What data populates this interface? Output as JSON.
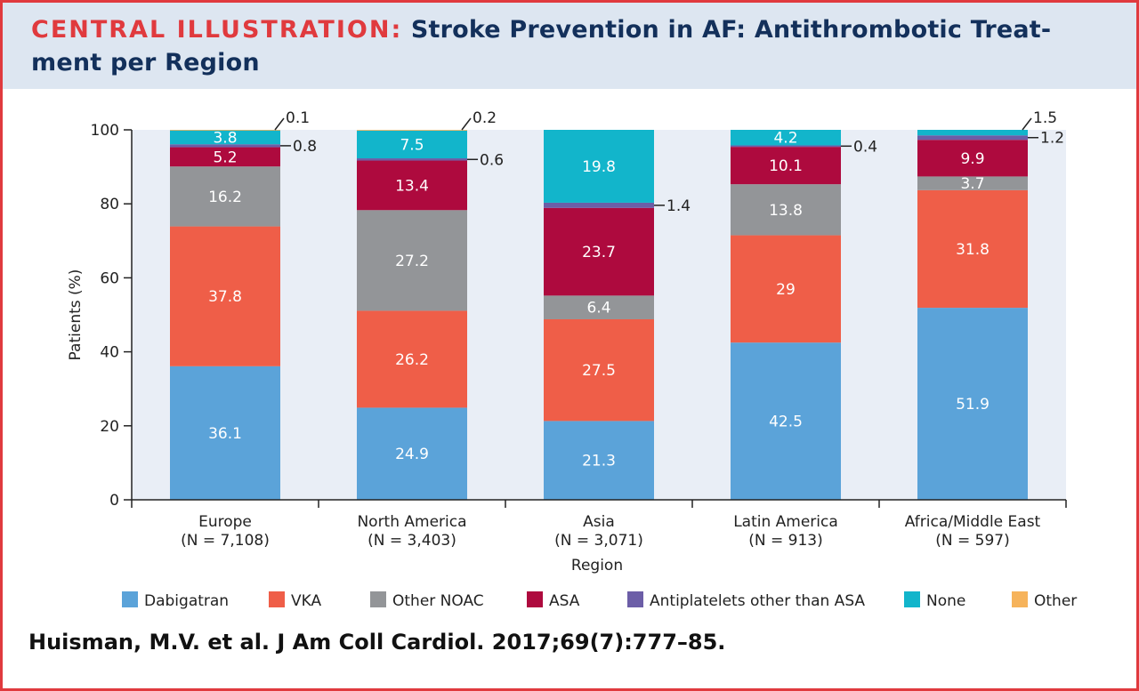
{
  "header": {
    "label": "CENTRAL ILLUSTRATION:",
    "title": "Stroke Prevention in AF: Antithrombotic Treat-ment per Region"
  },
  "citation": "Huisman, M.V. et al. J Am Coll Cardiol. 2017;69(7):777–85.",
  "chart_data": {
    "type": "bar",
    "stacked": true,
    "xlabel": "Region",
    "ylabel": "Patients (%)",
    "ylim": [
      0,
      100
    ],
    "yticks": [
      0,
      20,
      40,
      60,
      80,
      100
    ],
    "grid": false,
    "legend_position": "bottom",
    "categories": [
      "Europe",
      "North America",
      "Asia",
      "Latin America",
      "Africa/Middle East"
    ],
    "category_n": [
      "(N = 7,108)",
      "(N = 3,403)",
      "(N = 3,071)",
      "(N = 913)",
      "(N = 597)"
    ],
    "series": [
      {
        "name": "Dabigatran",
        "color": "#5ba3d9",
        "values": [
          36.1,
          24.9,
          21.3,
          42.5,
          51.9
        ]
      },
      {
        "name": "VKA",
        "color": "#ef5e48",
        "values": [
          37.8,
          26.2,
          27.5,
          29,
          31.8
        ]
      },
      {
        "name": "Other NOAC",
        "color": "#939598",
        "values": [
          16.2,
          27.2,
          6.4,
          13.8,
          3.7
        ]
      },
      {
        "name": "ASA",
        "color": "#ae0a3e",
        "values": [
          5.2,
          13.4,
          23.7,
          10.1,
          9.9
        ]
      },
      {
        "name": "Antiplatelets other than ASA",
        "color": "#6c5ea7",
        "values": [
          0.8,
          0.6,
          1.4,
          0.4,
          1.2
        ]
      },
      {
        "name": "None",
        "color": "#12b5cb",
        "values": [
          3.8,
          7.5,
          19.8,
          4.2,
          1.5
        ]
      },
      {
        "name": "Other",
        "color": "#f6b35b",
        "values": [
          0.1,
          0.2,
          0,
          0,
          0
        ]
      }
    ],
    "outside_labels": [
      {
        "category": 0,
        "series": 6,
        "text": "0.1"
      },
      {
        "category": 0,
        "series": 4,
        "text": "0.8"
      },
      {
        "category": 1,
        "series": 6,
        "text": "0.2"
      },
      {
        "category": 1,
        "series": 4,
        "text": "0.6"
      },
      {
        "category": 2,
        "series": 4,
        "text": "1.4"
      },
      {
        "category": 3,
        "series": 4,
        "text": "0.4"
      },
      {
        "category": 4,
        "series": 5,
        "text": "1.5"
      },
      {
        "category": 4,
        "series": 4,
        "text": "1.2"
      }
    ]
  },
  "colors": {
    "border": "#e03a3e",
    "header_bg": "#dde6f1",
    "plot_bg": "#e9eef6",
    "title": "#13305b"
  }
}
